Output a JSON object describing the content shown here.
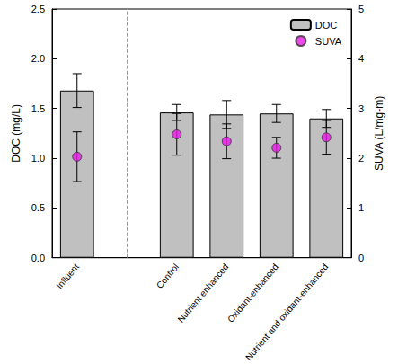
{
  "chart_data": {
    "type": "bar",
    "categories": [
      "Influent",
      null,
      "Control",
      "Nutrient enhanced",
      "Oxidant-enhanced",
      "Nutrient and oxidant-enhanced"
    ],
    "series": [
      {
        "name": "DOC",
        "type": "bar",
        "color": "#c0c0c0",
        "values": [
          1.68,
          null,
          1.46,
          1.44,
          1.45,
          1.4
        ],
        "error": [
          0.17,
          null,
          0.08,
          0.14,
          0.09,
          0.09
        ]
      },
      {
        "name": "SUVA",
        "type": "scatter",
        "axis": "y2",
        "color": "#e619e6",
        "marker": "circle",
        "values": [
          2.03,
          null,
          2.48,
          2.34,
          2.21,
          2.42
        ],
        "error": [
          0.5,
          null,
          0.42,
          0.35,
          0.21,
          0.34
        ]
      }
    ],
    "y_label": "DOC (mg/L)",
    "y2_label": "SUVA (L/mg-m)",
    "ylim": [
      0,
      2.5
    ],
    "yticks": [
      {
        "value": 0,
        "label": "0.0"
      },
      {
        "value": 0.5,
        "label": "0.5"
      },
      {
        "value": 1,
        "label": "1.0"
      },
      {
        "value": 1.5,
        "label": "1.5"
      },
      {
        "value": 2,
        "label": "2.0"
      },
      {
        "value": 2.5,
        "label": "2.5"
      }
    ],
    "y2lim": [
      0,
      5
    ],
    "y2ticks": [
      0,
      1,
      2,
      3,
      4,
      5
    ],
    "legend": "top-right",
    "grid": false
  }
}
